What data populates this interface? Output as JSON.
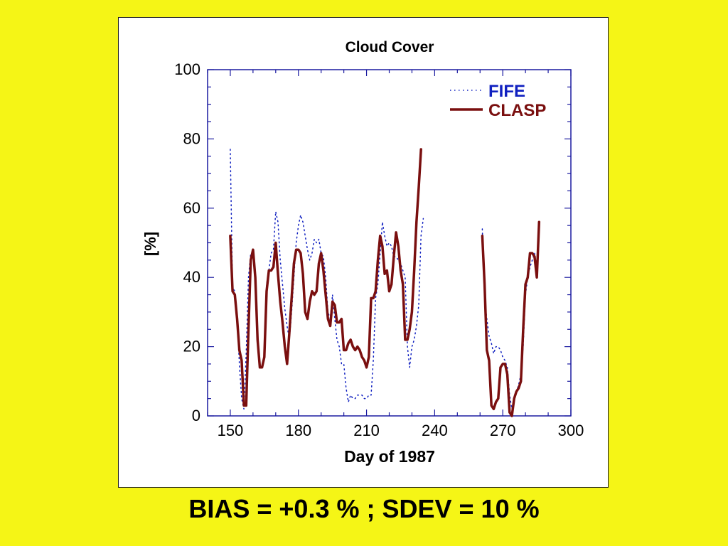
{
  "colors": {
    "background": "#f5f516",
    "fife": "#1020c0",
    "clasp": "#7a0f0f",
    "axis": "#1a1aa0"
  },
  "chart_data": {
    "type": "line",
    "title": "Cloud Cover",
    "xlabel": "Day of 1987",
    "ylabel": "[%]",
    "xlim": [
      140,
      300
    ],
    "ylim": [
      0,
      100
    ],
    "xticks": [
      150,
      180,
      210,
      240,
      270,
      300
    ],
    "yticks": [
      0,
      20,
      40,
      60,
      80,
      100
    ],
    "legend_position": "top-right",
    "series": [
      {
        "name": "FIFE",
        "style": "dotted",
        "color": "#1020c0",
        "segments": [
          [
            [
              150,
              77
            ],
            [
              151,
              37
            ],
            [
              152,
              36
            ],
            [
              153,
              28
            ],
            [
              154,
              15
            ],
            [
              155,
              5
            ],
            [
              156,
              2
            ],
            [
              157,
              18
            ],
            [
              158,
              40
            ],
            [
              159,
              47
            ],
            [
              160,
              47
            ],
            [
              161,
              38
            ],
            [
              162,
              22
            ],
            [
              163,
              15
            ],
            [
              164,
              15
            ],
            [
              165,
              17
            ],
            [
              166,
              38
            ],
            [
              167,
              42
            ],
            [
              168,
              47
            ],
            [
              169,
              48
            ],
            [
              170,
              59
            ],
            [
              171,
              56
            ],
            [
              172,
              45
            ],
            [
              173,
              38
            ],
            [
              174,
              31
            ],
            [
              175,
              26
            ],
            [
              176,
              22
            ],
            [
              177,
              30
            ],
            [
              178,
              40
            ],
            [
              179,
              50
            ],
            [
              180,
              55
            ],
            [
              181,
              58
            ],
            [
              182,
              56
            ],
            [
              183,
              52
            ],
            [
              184,
              48
            ],
            [
              185,
              45
            ],
            [
              186,
              47
            ],
            [
              187,
              51
            ],
            [
              188,
              50
            ],
            [
              189,
              51
            ],
            [
              190,
              47
            ],
            [
              191,
              46
            ],
            [
              192,
              40
            ],
            [
              193,
              30
            ],
            [
              194,
              28
            ],
            [
              195,
              35
            ],
            [
              196,
              28
            ],
            [
              197,
              22
            ],
            [
              198,
              20
            ],
            [
              199,
              15
            ],
            [
              200,
              15
            ],
            [
              201,
              8
            ],
            [
              202,
              4
            ],
            [
              203,
              6
            ],
            [
              204,
              5
            ],
            [
              205,
              5
            ],
            [
              206,
              6
            ],
            [
              207,
              6
            ],
            [
              208,
              6
            ],
            [
              209,
              5
            ],
            [
              210,
              5
            ],
            [
              211,
              6
            ],
            [
              212,
              6
            ],
            [
              213,
              16
            ],
            [
              214,
              34
            ],
            [
              215,
              38
            ],
            [
              216,
              47
            ],
            [
              217,
              56
            ],
            [
              218,
              52
            ],
            [
              219,
              49
            ],
            [
              220,
              50
            ],
            [
              221,
              49
            ],
            [
              222,
              46
            ],
            [
              223,
              46
            ],
            [
              224,
              45
            ],
            [
              225,
              44
            ],
            [
              226,
              42
            ],
            [
              227,
              40
            ],
            [
              228,
              20
            ],
            [
              229,
              14
            ],
            [
              230,
              20
            ],
            [
              231,
              22
            ],
            [
              232,
              26
            ],
            [
              233,
              32
            ],
            [
              234,
              52
            ],
            [
              235,
              57
            ]
          ],
          [
            [
              261,
              54
            ],
            [
              262,
              34
            ],
            [
              263,
              28
            ],
            [
              264,
              23
            ],
            [
              265,
              21
            ],
            [
              266,
              18
            ],
            [
              267,
              20
            ],
            [
              268,
              20
            ],
            [
              269,
              19
            ],
            [
              270,
              17
            ],
            [
              271,
              16
            ],
            [
              272,
              14
            ],
            [
              273,
              6
            ],
            [
              274,
              2
            ],
            [
              275,
              5
            ],
            [
              276,
              7
            ],
            [
              277,
              9
            ],
            [
              278,
              12
            ],
            [
              279,
              20
            ],
            [
              280,
              35
            ],
            [
              281,
              40
            ],
            [
              282,
              43
            ],
            [
              283,
              45
            ],
            [
              284,
              47
            ],
            [
              285,
              40
            ],
            [
              286,
              52
            ]
          ]
        ]
      },
      {
        "name": "CLASP",
        "style": "solid",
        "color": "#7a0f0f",
        "segments": [
          [
            [
              150,
              52
            ],
            [
              151,
              36
            ],
            [
              152,
              35
            ],
            [
              153,
              28
            ],
            [
              154,
              19
            ],
            [
              155,
              16
            ],
            [
              156,
              3
            ],
            [
              157,
              3
            ],
            [
              158,
              25
            ],
            [
              159,
              45
            ],
            [
              160,
              48
            ],
            [
              161,
              40
            ],
            [
              162,
              22
            ],
            [
              163,
              14
            ],
            [
              164,
              14
            ],
            [
              165,
              17
            ],
            [
              166,
              36
            ],
            [
              167,
              42
            ],
            [
              168,
              42
            ],
            [
              169,
              43
            ],
            [
              170,
              50
            ],
            [
              171,
              41
            ],
            [
              172,
              33
            ],
            [
              173,
              27
            ],
            [
              174,
              20
            ],
            [
              175,
              15
            ],
            [
              176,
              24
            ],
            [
              177,
              34
            ],
            [
              178,
              44
            ],
            [
              179,
              48
            ],
            [
              180,
              48
            ],
            [
              181,
              47
            ],
            [
              182,
              41
            ],
            [
              183,
              30
            ],
            [
              184,
              28
            ],
            [
              185,
              33
            ],
            [
              186,
              36
            ],
            [
              187,
              35
            ],
            [
              188,
              36
            ],
            [
              189,
              44
            ],
            [
              190,
              47
            ],
            [
              191,
              42
            ],
            [
              192,
              35
            ],
            [
              193,
              28
            ],
            [
              194,
              26
            ],
            [
              195,
              33
            ],
            [
              196,
              32
            ],
            [
              197,
              27
            ],
            [
              198,
              27
            ],
            [
              199,
              28
            ],
            [
              200,
              19
            ],
            [
              201,
              19
            ],
            [
              202,
              21
            ],
            [
              203,
              22
            ],
            [
              204,
              20
            ],
            [
              205,
              19
            ],
            [
              206,
              20
            ],
            [
              207,
              19
            ],
            [
              208,
              17
            ],
            [
              209,
              16
            ],
            [
              210,
              14
            ],
            [
              211,
              17
            ],
            [
              212,
              34
            ],
            [
              213,
              34
            ],
            [
              214,
              36
            ],
            [
              215,
              45
            ],
            [
              216,
              52
            ],
            [
              217,
              49
            ],
            [
              218,
              41
            ],
            [
              219,
              42
            ],
            [
              220,
              36
            ],
            [
              221,
              38
            ],
            [
              222,
              46
            ],
            [
              223,
              53
            ],
            [
              224,
              49
            ],
            [
              225,
              42
            ],
            [
              226,
              38
            ],
            [
              227,
              22
            ],
            [
              228,
              22
            ],
            [
              229,
              25
            ],
            [
              230,
              30
            ],
            [
              231,
              42
            ],
            [
              232,
              56
            ],
            [
              233,
              66
            ],
            [
              234,
              77
            ]
          ],
          [
            [
              261,
              52
            ],
            [
              262,
              38
            ],
            [
              263,
              19
            ],
            [
              264,
              16
            ],
            [
              265,
              3
            ],
            [
              266,
              2
            ],
            [
              267,
              4
            ],
            [
              268,
              5
            ],
            [
              269,
              14
            ],
            [
              270,
              15
            ],
            [
              271,
              15
            ],
            [
              272,
              12
            ],
            [
              273,
              1
            ],
            [
              274,
              0
            ],
            [
              275,
              5
            ],
            [
              276,
              7
            ],
            [
              277,
              8
            ],
            [
              278,
              10
            ],
            [
              279,
              25
            ],
            [
              280,
              38
            ],
            [
              281,
              40
            ],
            [
              282,
              47
            ],
            [
              283,
              47
            ],
            [
              284,
              46
            ],
            [
              285,
              40
            ],
            [
              286,
              56
            ]
          ]
        ]
      }
    ]
  },
  "stats_text": "BIAS = +0.3 % ; SDEV = 10 %"
}
